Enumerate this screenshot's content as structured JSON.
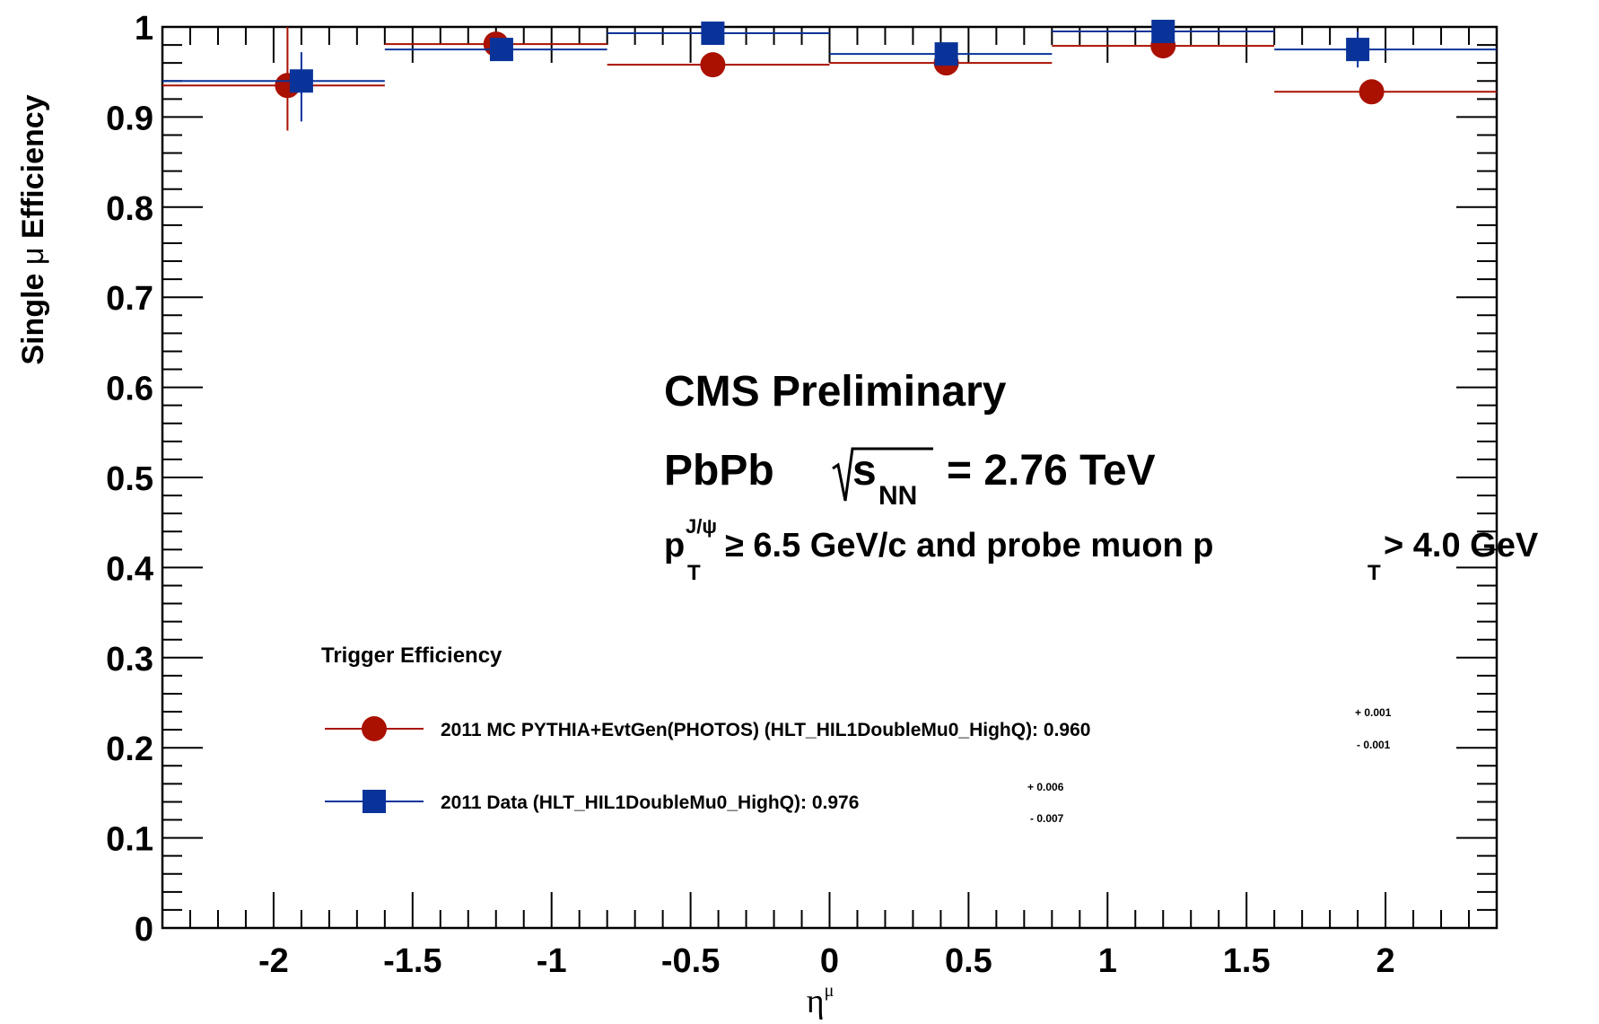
{
  "chart_data": {
    "type": "scatter",
    "title": "",
    "xlabel": "η",
    "xlabel_sup": "μ",
    "ylabel_parts": [
      "Single ",
      "μ",
      " Efficiency"
    ],
    "xlim": [
      -2.4,
      2.4
    ],
    "ylim": [
      0,
      1.0
    ],
    "x_ticks": [
      {
        "value": -2,
        "label": "-2"
      },
      {
        "value": -1.5,
        "label": "-1.5"
      },
      {
        "value": -1,
        "label": "-1"
      },
      {
        "value": -0.5,
        "label": "-0.5"
      },
      {
        "value": 0,
        "label": "0"
      },
      {
        "value": 0.5,
        "label": "0.5"
      },
      {
        "value": 1,
        "label": "1"
      },
      {
        "value": 1.5,
        "label": "1.5"
      },
      {
        "value": 2,
        "label": "2"
      }
    ],
    "y_ticks": [
      {
        "value": 0,
        "label": "0"
      },
      {
        "value": 0.1,
        "label": "0.1"
      },
      {
        "value": 0.2,
        "label": "0.2"
      },
      {
        "value": 0.3,
        "label": "0.3"
      },
      {
        "value": 0.4,
        "label": "0.4"
      },
      {
        "value": 0.5,
        "label": "0.5"
      },
      {
        "value": 0.6,
        "label": "0.6"
      },
      {
        "value": 0.7,
        "label": "0.7"
      },
      {
        "value": 0.8,
        "label": "0.8"
      },
      {
        "value": 0.9,
        "label": "0.9"
      },
      {
        "value": 1,
        "label": "1"
      }
    ],
    "grid": false,
    "legend_position": "lower-left",
    "series": [
      {
        "key": "mc",
        "marker": "circle",
        "color": "#aa1100",
        "points": [
          {
            "x": -1.95,
            "y": 0.935,
            "xlo": -2.4,
            "xhi": -1.6,
            "ylo": 0.885,
            "yhi": 1.0
          },
          {
            "x": -1.2,
            "y": 0.981,
            "xlo": -1.6,
            "xhi": -0.8,
            "ylo": 0.975,
            "yhi": 0.986
          },
          {
            "x": -0.42,
            "y": 0.958,
            "xlo": -0.8,
            "xhi": 0.0,
            "ylo": 0.955,
            "yhi": 0.961
          },
          {
            "x": 0.42,
            "y": 0.96,
            "xlo": 0.0,
            "xhi": 0.8,
            "ylo": 0.957,
            "yhi": 0.963
          },
          {
            "x": 1.2,
            "y": 0.979,
            "xlo": 0.8,
            "xhi": 1.6,
            "ylo": 0.975,
            "yhi": 0.983
          },
          {
            "x": 1.95,
            "y": 0.928,
            "xlo": 1.6,
            "xhi": 2.4,
            "ylo": 0.923,
            "yhi": 0.933
          }
        ]
      },
      {
        "key": "data",
        "marker": "square",
        "color": "#0a3399",
        "points": [
          {
            "x": -1.9,
            "y": 0.94,
            "xlo": -2.4,
            "xhi": -1.6,
            "ylo": 0.895,
            "yhi": 0.972
          },
          {
            "x": -1.18,
            "y": 0.975,
            "xlo": -1.6,
            "xhi": -0.8,
            "ylo": 0.965,
            "yhi": 0.984
          },
          {
            "x": -0.42,
            "y": 0.993,
            "xlo": -0.8,
            "xhi": 0.0,
            "ylo": 0.988,
            "yhi": 0.998
          },
          {
            "x": 0.42,
            "y": 0.97,
            "xlo": 0.0,
            "xhi": 0.8,
            "ylo": 0.962,
            "yhi": 0.977
          },
          {
            "x": 1.2,
            "y": 0.995,
            "xlo": 0.8,
            "xhi": 1.6,
            "ylo": 0.99,
            "yhi": 0.999
          },
          {
            "x": 1.9,
            "y": 0.975,
            "xlo": 1.6,
            "xhi": 2.4,
            "ylo": 0.955,
            "yhi": 0.995
          }
        ]
      }
    ],
    "annotations": {
      "experiment": "CMS Preliminary",
      "system": "PbPb",
      "energy_s": "s",
      "energy_sub": "NN",
      "energy_value": "= 2.76 TeV",
      "cut_p": "p",
      "cut_sub": "T",
      "cut_sup": "J/ψ",
      "cut_mid": " ≥ 6.5 GeV/c and probe muon p",
      "cut_sub2": "T",
      "cut_end": " > 4.0 GeV"
    },
    "legend": {
      "title": "Trigger Efficiency",
      "entries": [
        {
          "series": "mc",
          "label": "2011 MC PYTHIA+EvtGen(PHOTOS) (HLT_HIL1DoubleMu0_HighQ): 0.960",
          "err_up": "+ 0.001",
          "err_down": "- 0.001"
        },
        {
          "series": "data",
          "label": "2011 Data (HLT_HIL1DoubleMu0_HighQ): 0.976",
          "err_up": "+ 0.006",
          "err_down": "- 0.007"
        }
      ]
    }
  }
}
